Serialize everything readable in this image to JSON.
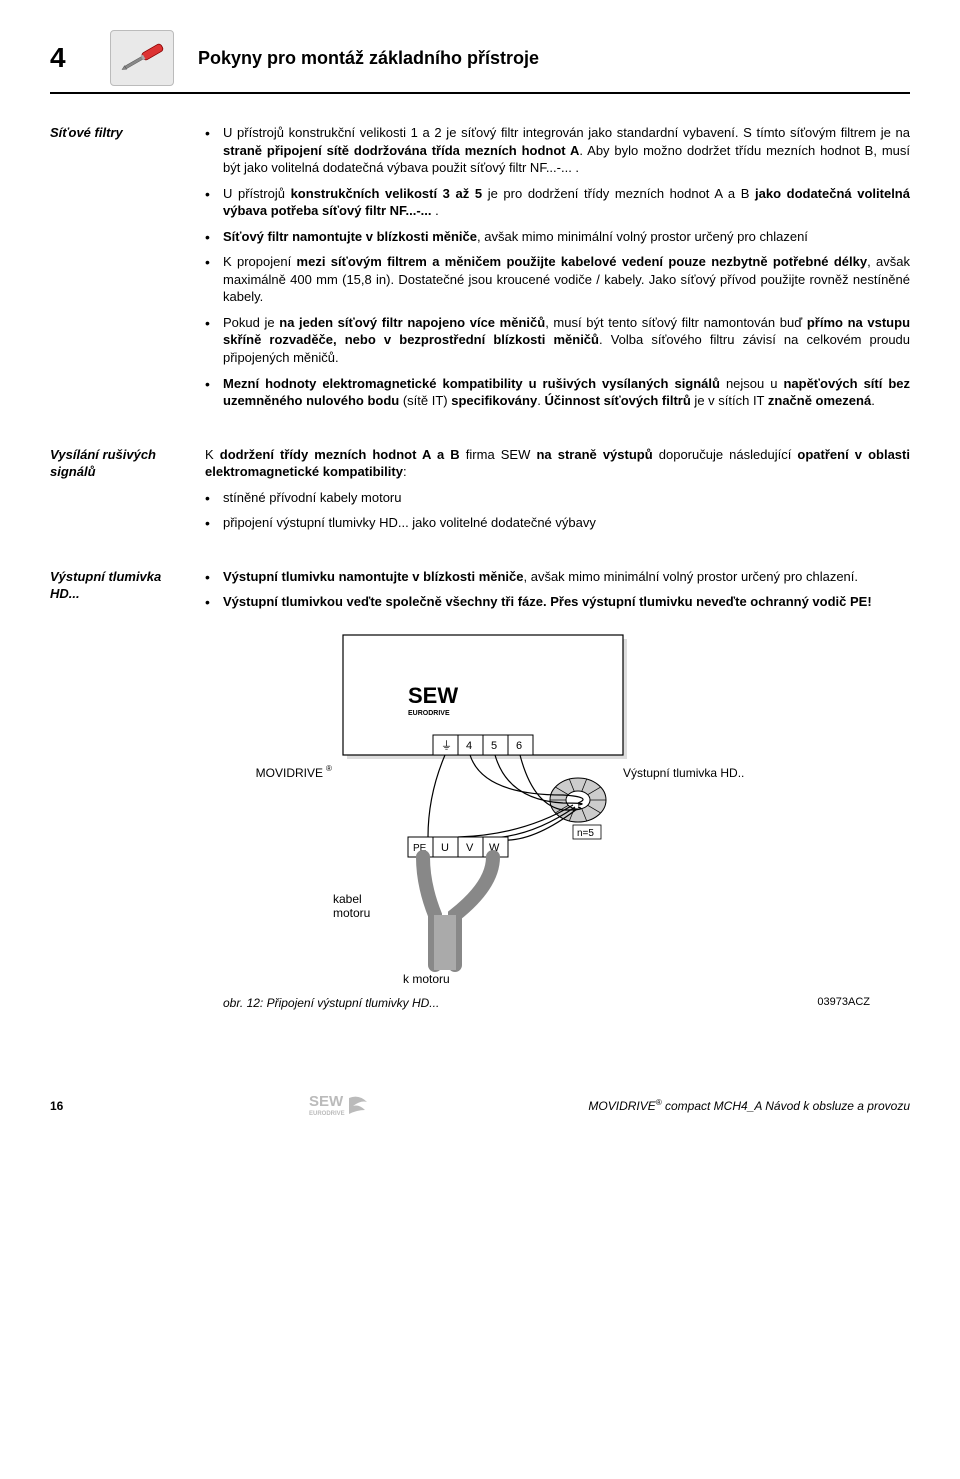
{
  "header": {
    "section_number": "4",
    "title": "Pokyny pro montáž základního přístroje",
    "icon": "screwdriver-icon"
  },
  "blocks": [
    {
      "label": "Síťové filtry",
      "items": [
        {
          "html": "U přístrojů konstrukční velikosti 1 a 2 je síťový filtr integrován jako standardní vybavení. S tímto síťovým filtrem je na <b>straně připojení sítě dodržována třída mezních hodnot A</b>. Aby bylo možno dodržet třídu mezních hodnot B, musí být jako volitelná dodatečná výbava použit síťový filtr NF...-... ."
        },
        {
          "html": "U přístrojů <b>konstrukčních velikostí 3 až 5</b> je pro dodržení třídy mezních hodnot A a B <b>jako dodatečná volitelná výbava potřeba síťový filtr NF...-...</b> ."
        },
        {
          "html": "<b>Síťový filtr namontujte v blízkosti měniče</b>, avšak mimo minimální volný prostor určený pro chlazení"
        },
        {
          "html": "K propojení <b>mezi síťovým filtrem a měničem použijte kabelové vedení pouze nezbytně potřebné délky</b>, avšak maximálně 400 mm (15,8 in). Dostatečné jsou kroucené vodiče / kabely. Jako síťový přívod použijte rovněž nestíněné kabely."
        },
        {
          "html": "Pokud je <b>na jeden síťový filtr napojeno více měničů</b>, musí být tento síťový filtr namontován buď <b>přímo na vstupu skříně rozvaděče, nebo v bezprostřední blízkosti měničů</b>. Volba síťového filtru závisí na celkovém proudu připojených měničů."
        },
        {
          "html": "<b>Mezní hodnoty elektromagnetické kompatibility u rušivých vysílaných signálů</b> nejsou u <b>napěťových sítí bez uzemněného nulového bodu</b> (sítě IT) <b>specifikovány</b>. <b>Účinnost síťových filtrů</b> je v sítích IT <b>značně omezená</b>."
        }
      ]
    },
    {
      "label": "Vysílání rušivých signálů",
      "intro": "K <b>dodržení třídy mezních hodnot A a B</b> firma SEW <b>na straně výstupů</b> doporučuje následující <b>opatření v oblasti elektromagnetické kompatibility</b>:",
      "items": [
        {
          "html": "stíněné přívodní kabely motoru"
        },
        {
          "html": "připojení výstupní tlumivky HD... jako volitelné dodatečné výbavy"
        }
      ]
    },
    {
      "label": "Výstupní tlumivka HD...",
      "items": [
        {
          "html": "<b>Výstupní tlumivku namontujte v blízkosti měniče</b>, avšak mimo minimální volný prostor určený pro chlazení."
        },
        {
          "html": "<b>Výstupní tlumivkou veďte společně všechny tři fáze. Přes výstupní tlumivku neveďte ochranný vodič PE!</b>"
        }
      ],
      "has_diagram": true
    }
  ],
  "diagram": {
    "brand_top": "SEW",
    "brand_sub": "EURODRIVE",
    "device_label": "MOVIDRIVE",
    "reg_mark": "®",
    "ground_sym": "⏚",
    "terminals_top": [
      "4",
      "5",
      "6"
    ],
    "pe_block": [
      "PE",
      "U",
      "V",
      "W"
    ],
    "choke_label": "Výstupní tlumivka HD..",
    "turns": "n=5",
    "cable_label_1": "kabel",
    "cable_label_2": "motoru",
    "bottom_label": "k motoru",
    "caption": "obr. 12: Připojení výstupní tlumivky HD...",
    "code": "03973ACZ"
  },
  "footer": {
    "page": "16",
    "logo_top": "SEW",
    "logo_sub": "EURODRIVE",
    "text_prefix": "MOVIDRIVE",
    "reg": "®",
    "text_suffix": " compact MCH4_A Návod k obsluze a provozu"
  }
}
